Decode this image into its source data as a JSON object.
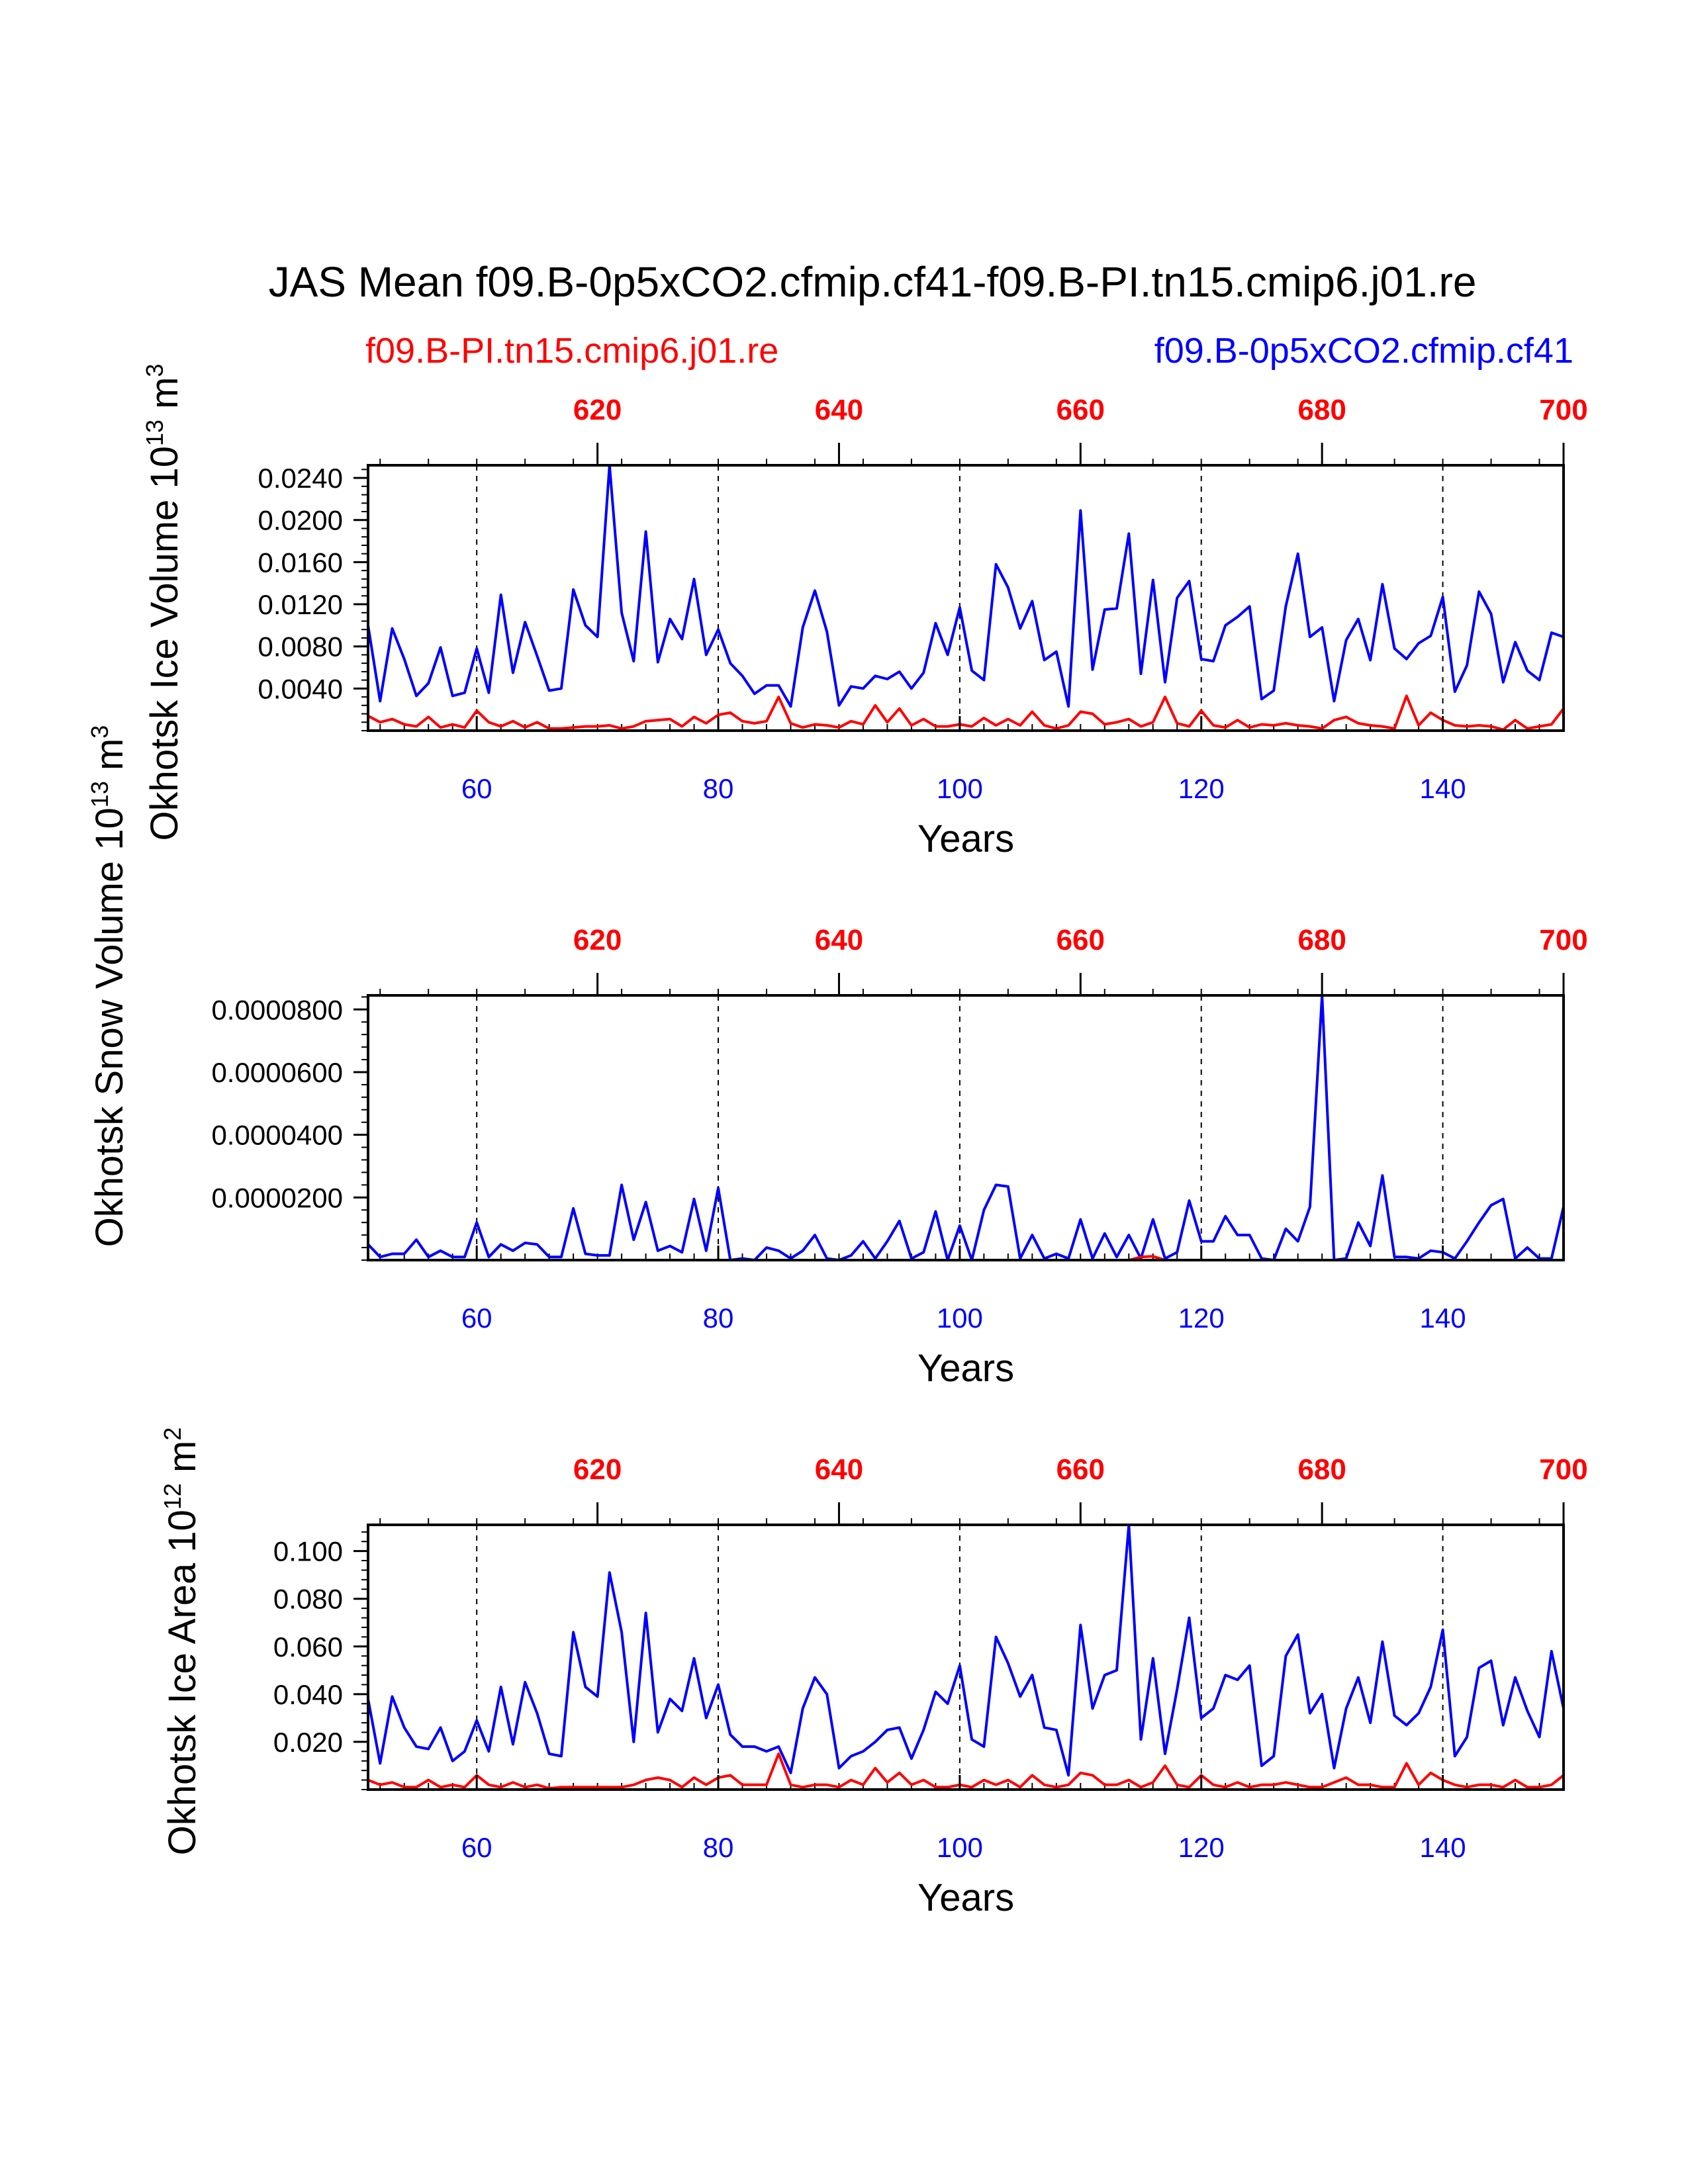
{
  "title": "JAS Mean f09.B-0p5xCO2.cfmip.cf41-f09.B-PI.tn15.cmip6.j01.re",
  "legend": {
    "left": {
      "label": "f09.B-PI.tn15.cmip6.j01.re",
      "color": "#ff0000"
    },
    "right": {
      "label": "f09.B-0p5xCO2.cfmip.cf41",
      "color": "#0000ff"
    }
  },
  "colors": {
    "red": "#ff0000",
    "blue": "#0000ff",
    "axis": "#000000"
  },
  "chart_data": [
    {
      "type": "line",
      "ylabel": "Okhotsk Ice Volume 10",
      "ylabel_exp": "13",
      "ylabel_unit": " m",
      "ylabel_unit_exp": "3",
      "xlabel": "Years",
      "xlim": [
        51,
        150
      ],
      "top_xlim": [
        601,
        700
      ],
      "ylim": [
        0.0,
        0.0252
      ],
      "yticks": [
        0.004,
        0.008,
        0.012,
        0.016,
        0.02,
        0.024
      ],
      "ytick_labels": [
        "0.0040",
        "0.0080",
        "0.0120",
        "0.0160",
        "0.0200",
        "0.0240"
      ],
      "xticks": [
        60,
        80,
        100,
        120,
        140
      ],
      "xtick_labels": [
        "60",
        "80",
        "100",
        "120",
        "140"
      ],
      "top_xticks": [
        620,
        640,
        660,
        680,
        700
      ],
      "top_xtick_labels": [
        "620",
        "640",
        "660",
        "680",
        "700"
      ],
      "gridlines": [
        60,
        80,
        100,
        120,
        140
      ],
      "series": [
        {
          "name": "f09.B-0p5xCO2.cfmip.cf41",
          "color": "#0000ff",
          "values": [
            0.01,
            0.0028,
            0.0097,
            0.0068,
            0.0033,
            0.0045,
            0.0079,
            0.0033,
            0.0036,
            0.0078,
            0.0036,
            0.0129,
            0.0055,
            0.0103,
            0.0071,
            0.0038,
            0.004,
            0.0134,
            0.01,
            0.0089,
            0.0252,
            0.0112,
            0.0066,
            0.0189,
            0.0065,
            0.0106,
            0.0087,
            0.0144,
            0.0072,
            0.0096,
            0.0064,
            0.0052,
            0.0035,
            0.0043,
            0.0043,
            0.0023,
            0.0098,
            0.0133,
            0.0094,
            0.0024,
            0.0042,
            0.004,
            0.0052,
            0.0049,
            0.0056,
            0.004,
            0.0055,
            0.0102,
            0.0072,
            0.0117,
            0.0057,
            0.0048,
            0.0158,
            0.0136,
            0.0097,
            0.0123,
            0.0067,
            0.0075,
            0.0023,
            0.0209,
            0.0058,
            0.0115,
            0.0116,
            0.0187,
            0.0054,
            0.0143,
            0.0046,
            0.0126,
            0.0142,
            0.0068,
            0.0066,
            0.01,
            0.0108,
            0.0118,
            0.003,
            0.0038,
            0.0118,
            0.0168,
            0.0089,
            0.0098,
            0.0028,
            0.0086,
            0.0106,
            0.0067,
            0.0139,
            0.0078,
            0.0068,
            0.0083,
            0.009,
            0.0127,
            0.0037,
            0.0062,
            0.0132,
            0.0111,
            0.0046,
            0.0084,
            0.0057,
            0.0048,
            0.0093,
            0.0089
          ]
        },
        {
          "name": "f09.B-PI.tn15.cmip6.j01.re",
          "color": "#ff0000",
          "values": [
            0.0014,
            0.0008,
            0.0011,
            0.0006,
            0.0004,
            0.0013,
            0.0003,
            0.0006,
            0.0003,
            0.0019,
            0.0008,
            0.0004,
            0.0009,
            0.0003,
            0.0008,
            0.0002,
            0.0002,
            0.0003,
            0.0004,
            0.0004,
            0.0005,
            0.0002,
            0.0004,
            0.0009,
            0.001,
            0.0011,
            0.0004,
            0.0013,
            0.0007,
            0.0015,
            0.0017,
            0.0009,
            0.0007,
            0.0009,
            0.0032,
            0.0007,
            0.0003,
            0.0006,
            0.0005,
            0.0003,
            0.0009,
            0.0006,
            0.0024,
            0.0008,
            0.0021,
            0.0005,
            0.0011,
            0.0004,
            0.0004,
            0.0006,
            0.0004,
            0.0012,
            0.0005,
            0.0011,
            0.0005,
            0.0018,
            0.0005,
            0.0002,
            0.0005,
            0.0018,
            0.0016,
            0.0006,
            0.0008,
            0.0011,
            0.0004,
            0.0008,
            0.0032,
            0.0007,
            0.0004,
            0.0019,
            0.0005,
            0.0003,
            0.001,
            0.0003,
            0.0006,
            0.0005,
            0.0007,
            0.0005,
            0.0004,
            0.0002,
            0.001,
            0.0013,
            0.0007,
            0.0005,
            0.0004,
            0.0002,
            0.0033,
            0.0005,
            0.0017,
            0.001,
            0.0005,
            0.0004,
            0.0005,
            0.0004,
            0.0001,
            0.001,
            0.0002,
            0.0004,
            0.0006,
            0.0021
          ]
        }
      ]
    },
    {
      "type": "line",
      "ylabel": "Okhotsk Snow Volume 10",
      "ylabel_exp": "13",
      "ylabel_unit": " m",
      "ylabel_unit_exp": "3",
      "xlabel": "Years",
      "xlim": [
        51,
        150
      ],
      "top_xlim": [
        601,
        700
      ],
      "ylim": [
        0.0,
        8.45e-05
      ],
      "yticks": [
        2e-05,
        4e-05,
        6e-05,
        8e-05
      ],
      "ytick_labels": [
        "0.0000200",
        "0.0000400",
        "0.0000600",
        "0.0000800"
      ],
      "xticks": [
        60,
        80,
        100,
        120,
        140
      ],
      "xtick_labels": [
        "60",
        "80",
        "100",
        "120",
        "140"
      ],
      "top_xticks": [
        620,
        640,
        660,
        680,
        700
      ],
      "top_xtick_labels": [
        "620",
        "640",
        "660",
        "680",
        "700"
      ],
      "gridlines": [
        60,
        80,
        100,
        120,
        140
      ],
      "series": [
        {
          "name": "f09.B-0p5xCO2.cfmip.cf41",
          "color": "#0000ff",
          "values": [
            5e-06,
            1e-06,
            2e-06,
            2e-06,
            6.5e-06,
            1e-06,
            3e-06,
            1e-06,
            1e-06,
            1.2e-05,
            1e-06,
            5e-06,
            3e-06,
            5.5e-06,
            5e-06,
            1e-06,
            1e-06,
            1.65e-05,
            2e-06,
            1.5e-06,
            1.5e-06,
            2.4e-05,
            6.5e-06,
            1.85e-05,
            3e-06,
            4.5e-06,
            2.5e-06,
            1.95e-05,
            3e-06,
            2.3e-05,
            0.0,
            5e-07,
            0.0,
            4e-06,
            3e-06,
            5e-07,
            3e-06,
            8e-06,
            5e-07,
            0.0,
            1.5e-06,
            6e-06,
            5e-07,
            6e-06,
            1.25e-05,
            5e-07,
            2.5e-06,
            1.55e-05,
            0.0,
            1.1e-05,
            0.0,
            1.6e-05,
            2.4e-05,
            2.35e-05,
            5e-07,
            8e-06,
            5e-07,
            2e-06,
            5e-07,
            1.3e-05,
            5e-07,
            8.5e-06,
            1e-06,
            8e-06,
            5e-07,
            1.3e-05,
            5e-07,
            2.5e-06,
            1.9e-05,
            6e-06,
            6e-06,
            1.4e-05,
            8e-06,
            8e-06,
            5e-07,
            0.0,
            1e-05,
            6e-06,
            1.7e-05,
            8.45e-05,
            0.0,
            5e-07,
            1.2e-05,
            4.5e-06,
            2.7e-05,
            1e-06,
            1e-06,
            5e-07,
            3e-06,
            2.5e-06,
            5e-07,
            6e-06,
            1.2e-05,
            1.75e-05,
            1.95e-05,
            5e-07,
            4e-06,
            5e-07,
            5e-07,
            1.7e-05
          ]
        },
        {
          "name": "f09.B-PI.tn15.cmip6.j01.re",
          "color": "#ff0000",
          "values": [
            0.0,
            0.0,
            0.0,
            0.0,
            0.0,
            0.0,
            0.0,
            0.0,
            0.0,
            0.0,
            0.0,
            0.0,
            0.0,
            0.0,
            0.0,
            0.0,
            0.0,
            0.0,
            0.0,
            0.0,
            0.0,
            0.0,
            0.0,
            0.0,
            0.0,
            0.0,
            0.0,
            0.0,
            0.0,
            0.0,
            0.0,
            0.0,
            0.0,
            0.0,
            0.0,
            0.0,
            0.0,
            0.0,
            0.0,
            0.0,
            0.0,
            0.0,
            0.0,
            0.0,
            0.0,
            0.0,
            0.0,
            0.0,
            0.0,
            0.0,
            0.0,
            0.0,
            0.0,
            0.0,
            0.0,
            0.0,
            0.0,
            0.0,
            0.0,
            0.0,
            0.0,
            0.0,
            0.0,
            0.0,
            1e-06,
            1.2e-06,
            0.0,
            0.0,
            0.0,
            0.0,
            0.0,
            0.0,
            0.0,
            0.0,
            0.0,
            0.0,
            0.0,
            0.0,
            0.0,
            0.0,
            0.0,
            0.0,
            0.0,
            0.0,
            0.0,
            0.0,
            0.0,
            0.0,
            0.0,
            0.0,
            0.0,
            0.0,
            0.0,
            0.0,
            0.0,
            0.0,
            0.0,
            0.0,
            0.0,
            0.0
          ]
        }
      ]
    },
    {
      "type": "line",
      "ylabel": "Okhotsk Ice Area 10",
      "ylabel_exp": "12",
      "ylabel_unit": " m",
      "ylabel_unit_exp": "2",
      "xlabel": "Years",
      "xlim": [
        51,
        150
      ],
      "top_xlim": [
        601,
        700
      ],
      "ylim": [
        0.0,
        0.111
      ],
      "yticks": [
        0.02,
        0.04,
        0.06,
        0.08,
        0.1
      ],
      "ytick_labels": [
        "0.020",
        "0.040",
        "0.060",
        "0.080",
        "0.100"
      ],
      "xticks": [
        60,
        80,
        100,
        120,
        140
      ],
      "xtick_labels": [
        "60",
        "80",
        "100",
        "120",
        "140"
      ],
      "top_xticks": [
        620,
        640,
        660,
        680,
        700
      ],
      "top_xtick_labels": [
        "620",
        "640",
        "660",
        "680",
        "700"
      ],
      "gridlines": [
        60,
        80,
        100,
        120,
        140
      ],
      "series": [
        {
          "name": "f09.B-0p5xCO2.cfmip.cf41",
          "color": "#0000ff",
          "values": [
            0.038,
            0.011,
            0.039,
            0.026,
            0.018,
            0.017,
            0.026,
            0.012,
            0.016,
            0.029,
            0.016,
            0.043,
            0.019,
            0.045,
            0.032,
            0.015,
            0.014,
            0.066,
            0.043,
            0.039,
            0.091,
            0.066,
            0.02,
            0.074,
            0.024,
            0.038,
            0.033,
            0.055,
            0.03,
            0.044,
            0.023,
            0.018,
            0.018,
            0.016,
            0.018,
            0.007,
            0.034,
            0.047,
            0.04,
            0.009,
            0.014,
            0.016,
            0.02,
            0.025,
            0.026,
            0.013,
            0.025,
            0.041,
            0.036,
            0.052,
            0.021,
            0.018,
            0.064,
            0.053,
            0.039,
            0.048,
            0.026,
            0.025,
            0.006,
            0.069,
            0.034,
            0.048,
            0.05,
            0.111,
            0.021,
            0.055,
            0.015,
            0.042,
            0.072,
            0.03,
            0.034,
            0.048,
            0.046,
            0.052,
            0.01,
            0.014,
            0.056,
            0.065,
            0.032,
            0.04,
            0.009,
            0.034,
            0.047,
            0.028,
            0.062,
            0.031,
            0.027,
            0.032,
            0.043,
            0.067,
            0.014,
            0.022,
            0.051,
            0.054,
            0.027,
            0.047,
            0.033,
            0.022,
            0.058,
            0.034
          ]
        },
        {
          "name": "f09.B-PI.tn15.cmip6.j01.re",
          "color": "#ff0000",
          "values": [
            0.004,
            0.002,
            0.003,
            0.001,
            0.001,
            0.004,
            0.001,
            0.002,
            0.001,
            0.006,
            0.002,
            0.001,
            0.003,
            0.001,
            0.002,
            0.0005,
            0.001,
            0.001,
            0.001,
            0.001,
            0.001,
            0.001,
            0.002,
            0.004,
            0.005,
            0.004,
            0.001,
            0.005,
            0.002,
            0.005,
            0.006,
            0.002,
            0.002,
            0.002,
            0.015,
            0.002,
            0.001,
            0.002,
            0.002,
            0.001,
            0.004,
            0.002,
            0.009,
            0.003,
            0.007,
            0.002,
            0.004,
            0.001,
            0.001,
            0.002,
            0.001,
            0.004,
            0.002,
            0.004,
            0.001,
            0.006,
            0.002,
            0.001,
            0.002,
            0.007,
            0.006,
            0.002,
            0.002,
            0.004,
            0.001,
            0.003,
            0.01,
            0.002,
            0.001,
            0.006,
            0.002,
            0.001,
            0.003,
            0.001,
            0.002,
            0.002,
            0.003,
            0.002,
            0.001,
            0.001,
            0.003,
            0.005,
            0.002,
            0.002,
            0.001,
            0.001,
            0.011,
            0.002,
            0.007,
            0.004,
            0.002,
            0.001,
            0.002,
            0.002,
            0.001,
            0.004,
            0.001,
            0.001,
            0.002,
            0.006
          ]
        }
      ]
    }
  ]
}
